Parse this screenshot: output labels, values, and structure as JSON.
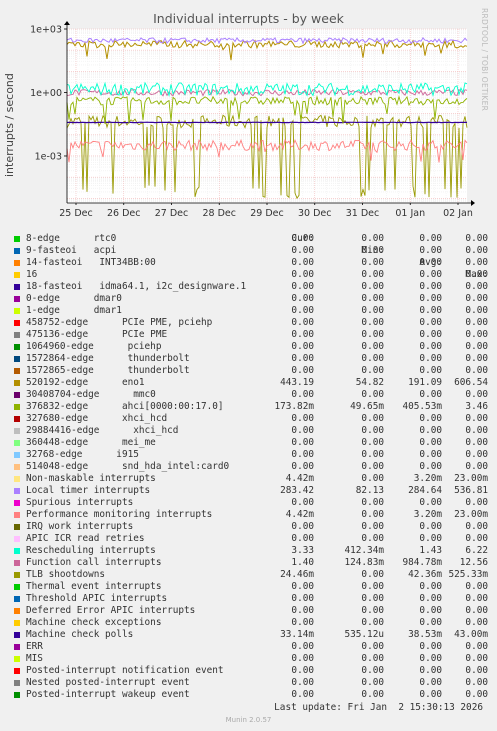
{
  "title": "Individual interrupts - by week",
  "side_label": "RRDTOOL / TOBI OETIKER",
  "ylabel": "interrupts / second",
  "footer": "Munin 2.0.57",
  "last_update": "Last update: Fri Jan  2 15:30:13 2026",
  "legend_headers": {
    "cur": "Cur:",
    "min": "Min:",
    "avg": "Avg:",
    "max": "Max:"
  },
  "chart_data": {
    "type": "line",
    "title": "Individual interrupts - by week",
    "ylabel": "interrupts / second",
    "yscale": "log",
    "ylim": [
      6e-06,
      1000
    ],
    "yticks": [
      "1e+03",
      "1e+00",
      "1e-03"
    ],
    "x": [
      "25 Dec",
      "26 Dec",
      "27 Dec",
      "28 Dec",
      "29 Dec",
      "30 Dec",
      "31 Dec",
      "01 Jan",
      "02 Jan"
    ],
    "grid": true,
    "series": [
      {
        "name": "8-edge      rtc0",
        "color": "#00cc00",
        "cur": "0.00",
        "min": "0.00",
        "avg": "0.00",
        "max": "0.00"
      },
      {
        "name": "9-fasteoi   acpi",
        "color": "#0066b3",
        "cur": "0.00",
        "min": "0.00",
        "avg": "0.00",
        "max": "0.00"
      },
      {
        "name": "14-fasteoi   INT34BB:00",
        "color": "#ff8000",
        "cur": "0.00",
        "min": "0.00",
        "avg": "0.00",
        "max": "0.00"
      },
      {
        "name": "16",
        "color": "#ffcc00",
        "cur": "0.00",
        "min": "0.00",
        "avg": "0.00",
        "max": "0.00"
      },
      {
        "name": "18-fasteoi   idma64.1, i2c_designware.1",
        "color": "#330099",
        "cur": "0.00",
        "min": "0.00",
        "avg": "0.00",
        "max": "0.00"
      },
      {
        "name": "0-edge      dmar0",
        "color": "#990099",
        "cur": "0.00",
        "min": "0.00",
        "avg": "0.00",
        "max": "0.00"
      },
      {
        "name": "1-edge      dmar1",
        "color": "#ccff00",
        "cur": "0.00",
        "min": "0.00",
        "avg": "0.00",
        "max": "0.00"
      },
      {
        "name": "458752-edge      PCIe PME, pciehp",
        "color": "#ff0000",
        "cur": "0.00",
        "min": "0.00",
        "avg": "0.00",
        "max": "0.00"
      },
      {
        "name": "475136-edge      PCIe PME",
        "color": "#808080",
        "cur": "0.00",
        "min": "0.00",
        "avg": "0.00",
        "max": "0.00"
      },
      {
        "name": "1064960-edge      pciehp",
        "color": "#008f00",
        "cur": "0.00",
        "min": "0.00",
        "avg": "0.00",
        "max": "0.00"
      },
      {
        "name": "1572864-edge      thunderbolt",
        "color": "#00487d",
        "cur": "0.00",
        "min": "0.00",
        "avg": "0.00",
        "max": "0.00"
      },
      {
        "name": "1572865-edge      thunderbolt",
        "color": "#b35a00",
        "cur": "0.00",
        "min": "0.00",
        "avg": "0.00",
        "max": "0.00"
      },
      {
        "name": "520192-edge      eno1",
        "color": "#b38f00",
        "cur": "443.19",
        "min": "54.82",
        "avg": "191.09",
        "max": "606.54"
      },
      {
        "name": "30408704-edge      mmc0",
        "color": "#6b006b",
        "cur": "0.00",
        "min": "0.00",
        "avg": "0.00",
        "max": "0.00"
      },
      {
        "name": "376832-edge      ahci[0000:00:17.0]",
        "color": "#8fb300",
        "cur": "173.82m",
        "min": "49.65m",
        "avg": "405.53m",
        "max": "3.46"
      },
      {
        "name": "327680-edge      xhci_hcd",
        "color": "#b30000",
        "cur": "0.00",
        "min": "0.00",
        "avg": "0.00",
        "max": "0.00"
      },
      {
        "name": "29884416-edge      xhci_hcd",
        "color": "#bebebe",
        "cur": "0.00",
        "min": "0.00",
        "avg": "0.00",
        "max": "0.00"
      },
      {
        "name": "360448-edge      mei_me",
        "color": "#80ff80",
        "cur": "0.00",
        "min": "0.00",
        "avg": "0.00",
        "max": "0.00"
      },
      {
        "name": "32768-edge      i915",
        "color": "#80c9ff",
        "cur": "0.00",
        "min": "0.00",
        "avg": "0.00",
        "max": "0.00"
      },
      {
        "name": "514048-edge      snd_hda_intel:card0",
        "color": "#ffc080",
        "cur": "0.00",
        "min": "0.00",
        "avg": "0.00",
        "max": "0.00"
      },
      {
        "name": "Non-maskable interrupts",
        "color": "#ffe680",
        "cur": "4.42m",
        "min": "0.00",
        "avg": "3.20m",
        "max": "23.00m"
      },
      {
        "name": "Local timer interrupts",
        "color": "#aa80ff",
        "cur": "283.42",
        "min": "82.13",
        "avg": "284.64",
        "max": "536.81"
      },
      {
        "name": "Spurious interrupts",
        "color": "#ee00cc",
        "cur": "0.00",
        "min": "0.00",
        "avg": "0.00",
        "max": "0.00"
      },
      {
        "name": "Performance monitoring interrupts",
        "color": "#ff8080",
        "cur": "4.42m",
        "min": "0.00",
        "avg": "3.20m",
        "max": "23.00m"
      },
      {
        "name": "IRQ work interrupts",
        "color": "#666600",
        "cur": "0.00",
        "min": "0.00",
        "avg": "0.00",
        "max": "0.00"
      },
      {
        "name": "APIC ICR read retries",
        "color": "#ffbfff",
        "cur": "0.00",
        "min": "0.00",
        "avg": "0.00",
        "max": "0.00"
      },
      {
        "name": "Rescheduling interrupts",
        "color": "#00ffcc",
        "cur": "3.33",
        "min": "412.34m",
        "avg": "1.43",
        "max": "6.22"
      },
      {
        "name": "Function call interrupts",
        "color": "#cc6699",
        "cur": "1.40",
        "min": "124.83m",
        "avg": "984.78m",
        "max": "12.56"
      },
      {
        "name": "TLB shootdowns",
        "color": "#999900",
        "cur": "24.46m",
        "min": "0.00",
        "avg": "42.36m",
        "max": "525.33m"
      },
      {
        "name": "Thermal event interrupts",
        "color": "#00cc00",
        "cur": "0.00",
        "min": "0.00",
        "avg": "0.00",
        "max": "0.00"
      },
      {
        "name": "Threshold APIC interrupts",
        "color": "#0066b3",
        "cur": "0.00",
        "min": "0.00",
        "avg": "0.00",
        "max": "0.00"
      },
      {
        "name": "Deferred Error APIC interrupts",
        "color": "#ff8000",
        "cur": "0.00",
        "min": "0.00",
        "avg": "0.00",
        "max": "0.00"
      },
      {
        "name": "Machine check exceptions",
        "color": "#ffcc00",
        "cur": "0.00",
        "min": "0.00",
        "avg": "0.00",
        "max": "0.00"
      },
      {
        "name": "Machine check polls",
        "color": "#330099",
        "cur": "33.14m",
        "min": "535.12u",
        "avg": "38.53m",
        "max": "43.00m"
      },
      {
        "name": "ERR",
        "color": "#990099",
        "cur": "0.00",
        "min": "0.00",
        "avg": "0.00",
        "max": "0.00"
      },
      {
        "name": "MIS",
        "color": "#ccff00",
        "cur": "0.00",
        "min": "0.00",
        "avg": "0.00",
        "max": "0.00"
      },
      {
        "name": "Posted-interrupt notification event",
        "color": "#ff0000",
        "cur": "0.00",
        "min": "0.00",
        "avg": "0.00",
        "max": "0.00"
      },
      {
        "name": "Nested posted-interrupt event",
        "color": "#808080",
        "cur": "0.00",
        "min": "0.00",
        "avg": "0.00",
        "max": "0.00"
      },
      {
        "name": "Posted-interrupt wakeup event",
        "color": "#008f00",
        "cur": "0.00",
        "min": "0.00",
        "avg": "0.00",
        "max": "0.00"
      }
    ]
  }
}
